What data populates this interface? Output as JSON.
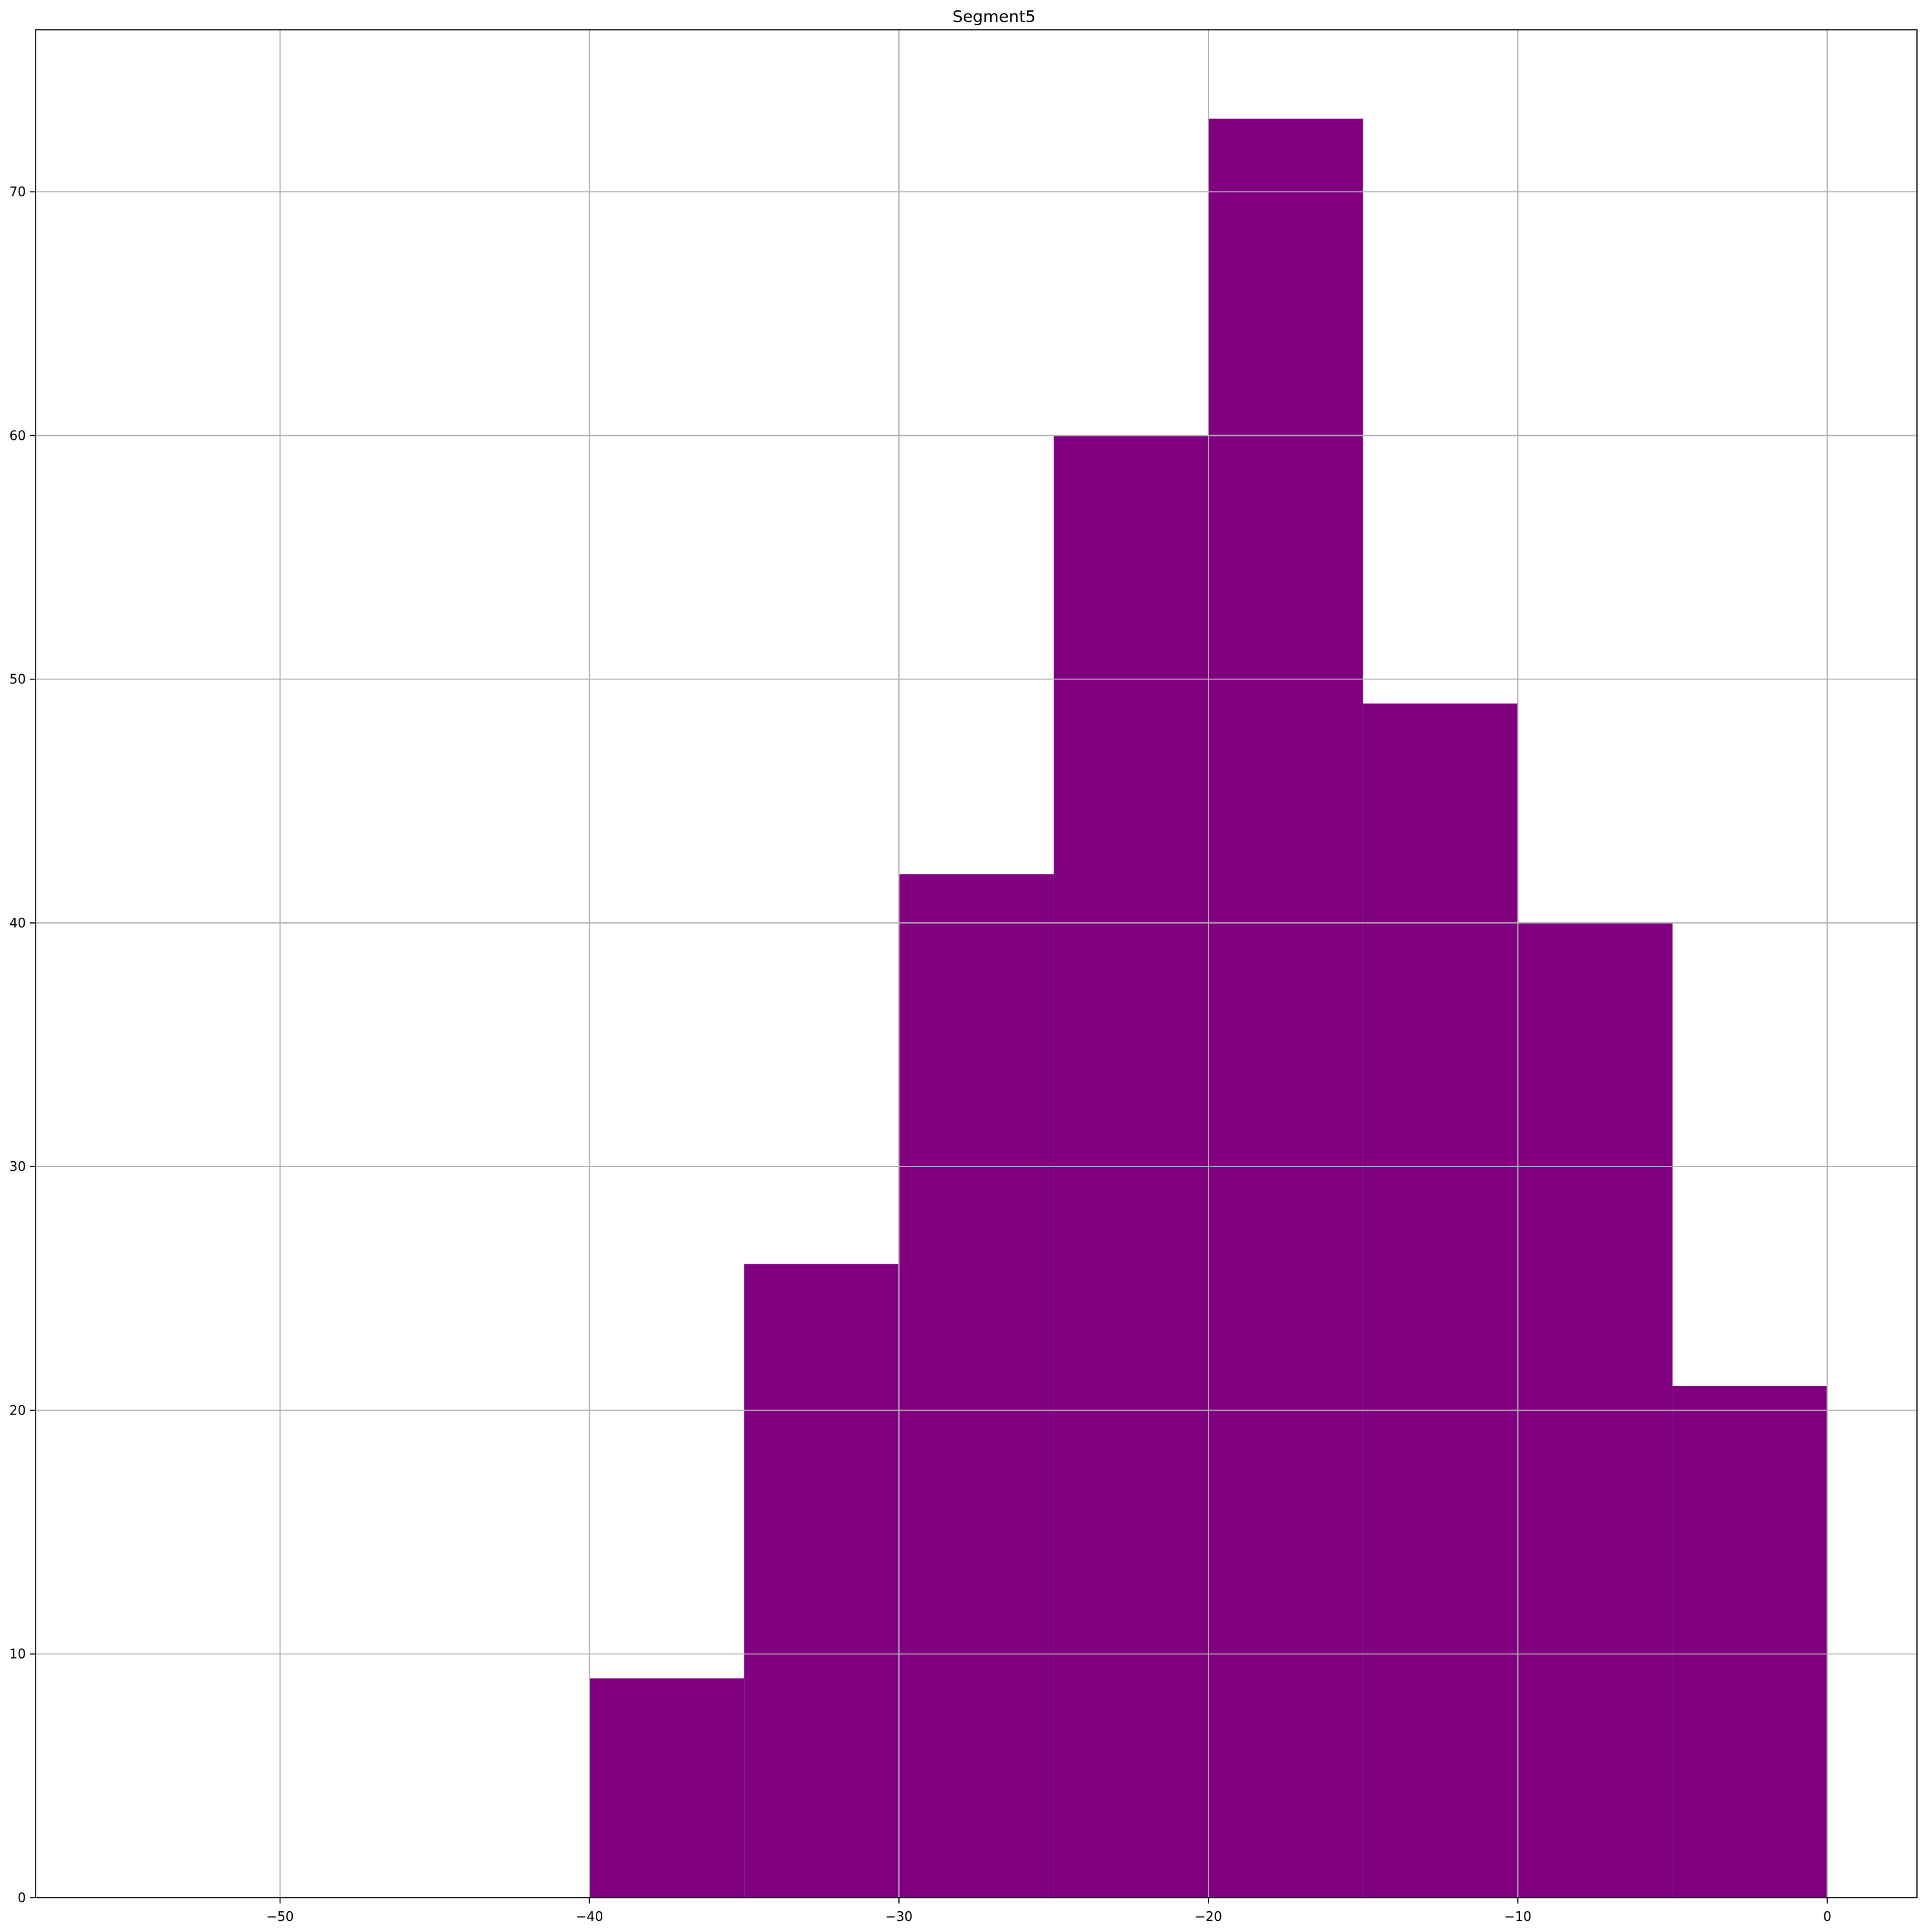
{
  "chart_data": {
    "type": "histogram",
    "title": "Segment5",
    "xlabel": "",
    "ylabel": "",
    "bar_color": "#800080",
    "grid": true,
    "grid_color": "#b0b0b0",
    "xlim": [
      -57.9,
      2.9
    ],
    "ylim": [
      0,
      76.65
    ],
    "x_ticks": [
      -50,
      -40,
      -30,
      -20,
      -10,
      0
    ],
    "x_tick_labels": [
      "−50",
      "−40",
      "−30",
      "−20",
      "−10",
      "0"
    ],
    "y_ticks": [
      0,
      10,
      20,
      30,
      40,
      50,
      60,
      70
    ],
    "y_tick_labels": [
      "0",
      "10",
      "20",
      "30",
      "40",
      "50",
      "60",
      "70"
    ],
    "bins": [
      {
        "x0": -40,
        "x1": -35,
        "count": 9
      },
      {
        "x0": -35,
        "x1": -30,
        "count": 26
      },
      {
        "x0": -30,
        "x1": -25,
        "count": 42
      },
      {
        "x0": -25,
        "x1": -20,
        "count": 60
      },
      {
        "x0": -20,
        "x1": -15,
        "count": 73
      },
      {
        "x0": -15,
        "x1": -10,
        "count": 49
      },
      {
        "x0": -10,
        "x1": -5,
        "count": 40
      },
      {
        "x0": -5,
        "x1": 0,
        "count": 21
      }
    ]
  }
}
